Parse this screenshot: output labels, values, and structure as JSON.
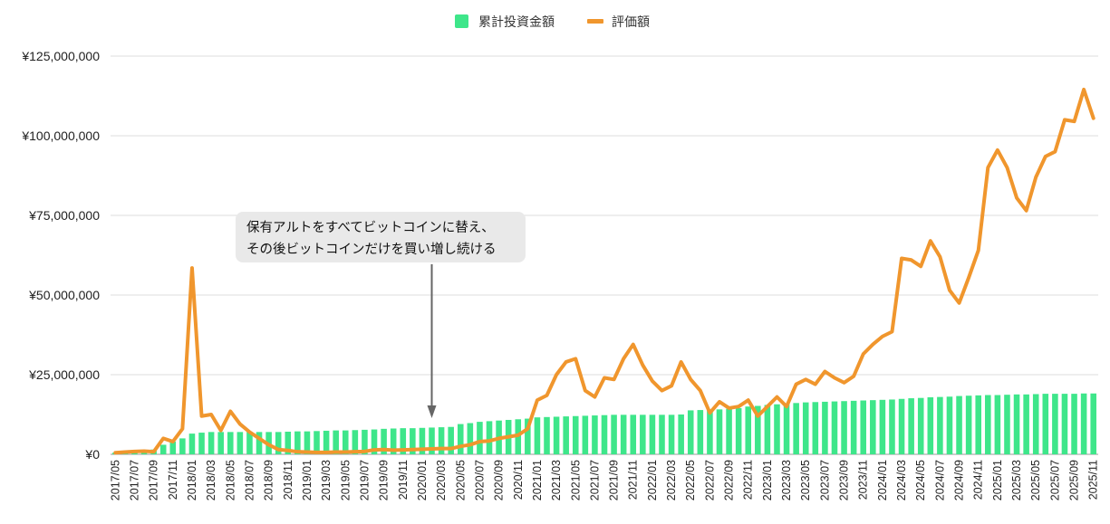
{
  "chart_data": {
    "type": "bar",
    "legend_position": "top-center",
    "grid": true,
    "ylim": [
      0,
      125000000
    ],
    "yticks": [
      0,
      25000000,
      50000000,
      75000000,
      100000000,
      125000000
    ],
    "ytick_labels": [
      "¥0",
      "¥25,000,000",
      "¥50,000,000",
      "¥75,000,000",
      "¥100,000,000",
      "¥125,000,000"
    ],
    "categories": [
      "2017/05",
      "2017/06",
      "2017/07",
      "2017/08",
      "2017/09",
      "2017/10",
      "2017/11",
      "2017/12",
      "2018/01",
      "2018/02",
      "2018/03",
      "2018/04",
      "2018/05",
      "2018/06",
      "2018/07",
      "2018/08",
      "2018/09",
      "2018/10",
      "2018/11",
      "2018/12",
      "2019/01",
      "2019/02",
      "2019/03",
      "2019/04",
      "2019/05",
      "2019/06",
      "2019/07",
      "2019/08",
      "2019/09",
      "2019/10",
      "2019/11",
      "2019/12",
      "2020/01",
      "2020/02",
      "2020/03",
      "2020/04",
      "2020/05",
      "2020/06",
      "2020/07",
      "2020/08",
      "2020/09",
      "2020/10",
      "2020/11",
      "2020/12",
      "2021/01",
      "2021/02",
      "2021/03",
      "2021/04",
      "2021/05",
      "2021/06",
      "2021/07",
      "2021/08",
      "2021/09",
      "2021/10",
      "2021/11",
      "2021/12",
      "2022/01",
      "2022/02",
      "2022/03",
      "2022/04",
      "2022/05",
      "2022/06",
      "2022/07",
      "2022/08",
      "2022/09",
      "2022/10",
      "2022/11",
      "2022/12",
      "2023/01",
      "2023/02",
      "2023/03",
      "2023/04",
      "2023/05",
      "2023/06",
      "2023/07",
      "2023/08",
      "2023/09",
      "2023/10",
      "2023/11",
      "2023/12",
      "2024/01",
      "2024/02",
      "2024/03",
      "2024/04",
      "2024/05",
      "2024/06",
      "2024/07",
      "2024/08",
      "2024/09",
      "2024/10",
      "2024/11",
      "2024/12",
      "2025/01",
      "2025/02",
      "2025/03",
      "2025/04",
      "2025/05",
      "2025/06",
      "2025/07",
      "2025/08",
      "2025/09",
      "2025/10",
      "2025/11"
    ],
    "x_tick_labels": [
      "2017/05",
      "2017/07",
      "2017/09",
      "2017/11",
      "2018/01",
      "2018/03",
      "2018/05",
      "2018/07",
      "2018/09",
      "2018/11",
      "2019/01",
      "2019/03",
      "2019/05",
      "2019/07",
      "2019/09",
      "2019/11",
      "2020/01",
      "2020/03",
      "2020/05",
      "2020/07",
      "2020/09",
      "2020/11",
      "2021/01",
      "2021/03",
      "2021/05",
      "2021/07",
      "2021/09",
      "2021/11",
      "2022/01",
      "2022/03",
      "2022/05",
      "2022/07",
      "2022/09",
      "2022/11",
      "2023/01",
      "2023/03",
      "2023/05",
      "2023/07",
      "2023/09",
      "2023/11",
      "2024/01",
      "2024/03",
      "2024/05",
      "2024/07",
      "2024/09",
      "2024/11",
      "2025/01",
      "2025/03",
      "2025/05",
      "2025/07",
      "2025/09",
      "2025/11"
    ],
    "series": [
      {
        "name": "累計投資金額",
        "type": "bar",
        "color": "#3ee68a",
        "values": [
          500000,
          700000,
          900000,
          1200000,
          1500000,
          3000000,
          4000000,
          5000000,
          6500000,
          6800000,
          7000000,
          7000000,
          7000000,
          7000000,
          7000000,
          7000000,
          7000000,
          7000000,
          7100000,
          7200000,
          7200000,
          7300000,
          7400000,
          7500000,
          7500000,
          7600000,
          7700000,
          7800000,
          8000000,
          8100000,
          8200000,
          8200000,
          8300000,
          8400000,
          8500000,
          8600000,
          9500000,
          9800000,
          10200000,
          10400000,
          10600000,
          10800000,
          11000000,
          11200000,
          11600000,
          11700000,
          11800000,
          11900000,
          12000000,
          12100000,
          12200000,
          12300000,
          12400000,
          12400000,
          12400000,
          12400000,
          12400000,
          12400000,
          12400000,
          12500000,
          13800000,
          13900000,
          14000000,
          14100000,
          14300000,
          14500000,
          15000000,
          15200000,
          15500000,
          15700000,
          16000000,
          16100000,
          16300000,
          16400000,
          16500000,
          16600000,
          16700000,
          16800000,
          16900000,
          17000000,
          17100000,
          17200000,
          17400000,
          17600000,
          17700000,
          17900000,
          18000000,
          18100000,
          18300000,
          18400000,
          18500000,
          18600000,
          18600000,
          18700000,
          18800000,
          18800000,
          18900000,
          19000000,
          19000000,
          19000000,
          19000000,
          19100000,
          19100000
        ]
      },
      {
        "name": "評価額",
        "type": "line",
        "color": "#f0962d",
        "values": [
          500000,
          700000,
          900000,
          1000000,
          800000,
          5000000,
          4000000,
          8000000,
          58500000,
          12000000,
          12500000,
          7500000,
          13500000,
          9500000,
          7000000,
          5000000,
          3000000,
          1500000,
          1200000,
          800000,
          700000,
          600000,
          600000,
          700000,
          700000,
          800000,
          900000,
          1400000,
          1500000,
          1300000,
          1400000,
          1500000,
          1600000,
          1700000,
          1800000,
          1800000,
          2500000,
          3000000,
          4000000,
          4200000,
          5000000,
          5500000,
          6000000,
          8000000,
          17000000,
          18500000,
          25000000,
          29000000,
          30000000,
          20000000,
          18000000,
          24000000,
          23500000,
          30000000,
          34500000,
          28000000,
          23000000,
          20000000,
          21500000,
          29000000,
          23500000,
          20000000,
          13000000,
          16500000,
          14500000,
          15000000,
          17000000,
          12000000,
          15000000,
          18000000,
          15000000,
          22000000,
          23500000,
          22000000,
          26000000,
          24000000,
          22500000,
          24500000,
          31500000,
          34500000,
          37000000,
          38500000,
          61500000,
          61000000,
          59000000,
          67000000,
          62000000,
          51500000,
          47500000,
          55500000,
          64000000,
          90000000,
          95500000,
          90000000,
          80500000,
          76500000,
          87000000,
          93500000,
          95000000,
          105000000,
          104500000,
          114500000,
          105500000
        ]
      }
    ],
    "annotations": [
      {
        "text_lines": [
          "保有アルトをすべてビットコインに替え、",
          "その後ビットコインだけを買い増し続ける"
        ],
        "points_to": "2020/02",
        "arrow": "down"
      }
    ]
  }
}
